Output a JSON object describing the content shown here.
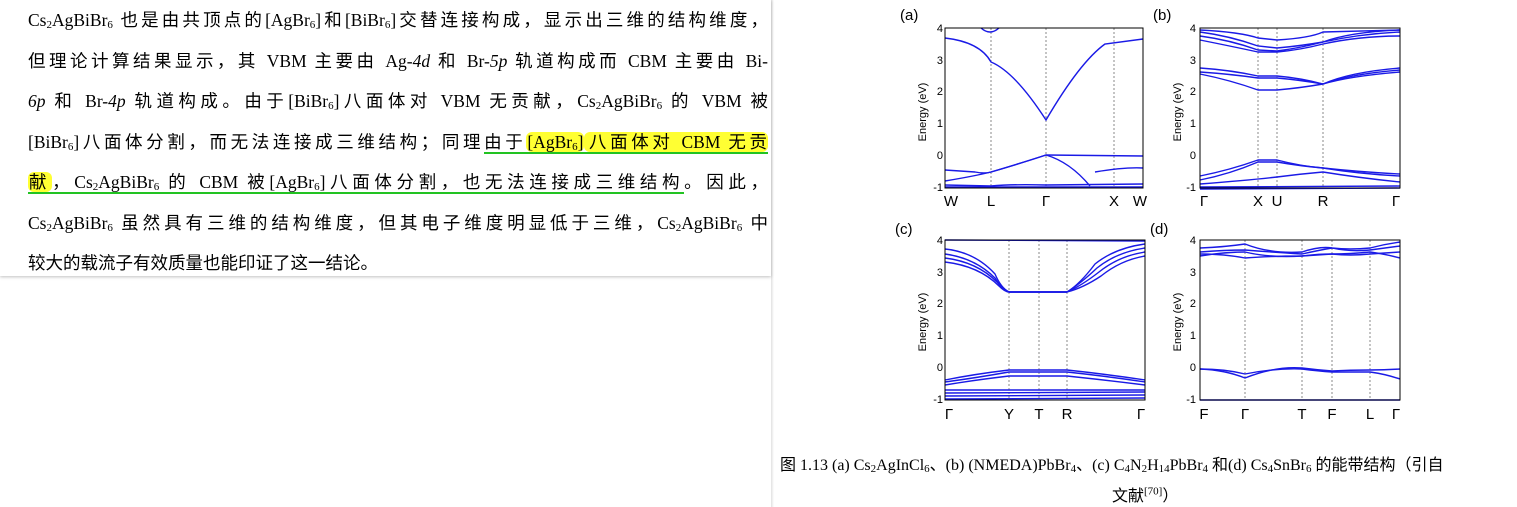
{
  "paragraph": {
    "l1": {
      "a": "Cs",
      "b": "AgBiBr",
      "c": " 也是由共顶点的[AgBr",
      "d": "]和[BiBr",
      "e": "]交替连接构成，显示出三维的结构维度，"
    },
    "l2": {
      "a": "但理论计算结果显示，其 VBM 主要由 Ag-",
      "b": "4d",
      "c": " 和 Br-",
      "d": "5p",
      "e": " 轨道构成而 CBM 主要由 Bi-"
    },
    "l3": {
      "a": "6p",
      "b": " 和 Br-",
      "c": "4p",
      "d": " 轨道构成。由于[BiBr",
      "e": "]八面体对 VBM 无贡献，Cs",
      "f": "AgBiBr",
      "g": " 的 VBM 被"
    },
    "l4": {
      "a": "[BiBr",
      "b": "]八面体分割，而无法连接成三维结构；同理",
      "c": "由于",
      "d": "[AgBr",
      "e": "]",
      "f": "八面体对  CBM  无贡"
    },
    "l5": {
      "a": "献",
      "b": "，Cs",
      "c": "AgBiBr",
      "d": " 的  CBM  被[AgBr",
      "e": "]八面体分割，也无法连接成三维结构",
      "f": "。因此，"
    },
    "l6": {
      "a": "Cs",
      "b": "AgBiBr",
      "c": " 虽然具有三维的结构维度，但其电子维度明显低于三维，Cs",
      "d": "AgBiBr",
      "e": " 中"
    },
    "l7": {
      "a": "较大的载流子有效质量也能印证了这一结论。"
    },
    "sub2": "2",
    "sub6": "6"
  },
  "panels": {
    "a": {
      "label": "(a)",
      "ylabel": "Energy (eV)",
      "yticks": [
        "4",
        "3",
        "2",
        "1",
        "0",
        "-1"
      ],
      "xticks": [
        "W",
        "L",
        "Γ",
        "X",
        "W"
      ]
    },
    "b": {
      "label": "(b)",
      "ylabel": "Energy (eV)",
      "yticks": [
        "4",
        "3",
        "2",
        "1",
        "0",
        "-1"
      ],
      "xticks": [
        "Γ",
        "X",
        "U",
        "R",
        "Γ"
      ]
    },
    "c": {
      "label": "(c)",
      "ylabel": "Energy (eV)",
      "yticks": [
        "4",
        "3",
        "2",
        "1",
        "0",
        "-1"
      ],
      "xticks": [
        "Γ",
        "Y",
        "T",
        "R",
        "Γ"
      ]
    },
    "d": {
      "label": "(d)",
      "ylabel": "Energy (eV)",
      "yticks": [
        "4",
        "3",
        "2",
        "1",
        "0",
        "-1"
      ],
      "xticks": [
        "F",
        "Γ",
        "T",
        "F",
        "L",
        "Γ"
      ]
    }
  },
  "caption": {
    "p1": "图  1.13 (a) Cs",
    "p2": "AgInCl",
    "p3": "、(b) (NMEDA)PbBr",
    "p4": "、(c) C",
    "p5": "N",
    "p6": "H",
    "p7": "PbBr",
    "p8": " 和(d) Cs",
    "p9": "SnBr",
    "p10": " 的能带结构（引自",
    "s2": "2",
    "s6": "6",
    "s4": "4",
    "s14": "14",
    "line2": "文献",
    "ref": "[70]",
    "close": "）"
  },
  "colors": {
    "band": "#1a1ae6",
    "highlight": "#ffff33",
    "underline": "#22c322"
  }
}
